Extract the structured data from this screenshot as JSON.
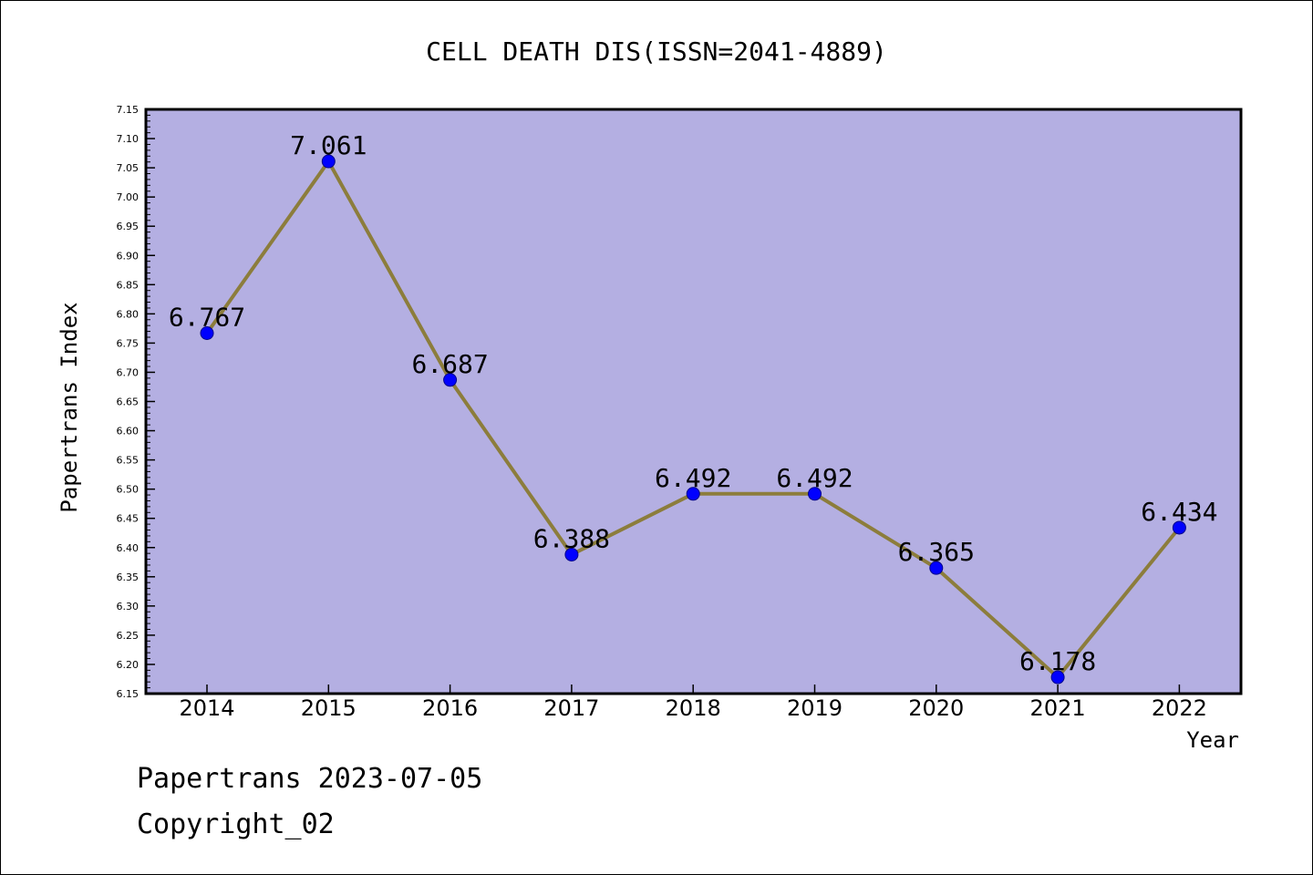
{
  "chart_data": {
    "type": "line",
    "title": "CELL DEATH DIS(ISSN=2041-4889)",
    "xlabel": "Year",
    "ylabel": "Papertrans Index",
    "categories": [
      "2014",
      "2015",
      "2016",
      "2017",
      "2018",
      "2019",
      "2020",
      "2021",
      "2022"
    ],
    "series": [
      {
        "values": [
          6.767,
          7.061,
          6.687,
          6.388,
          6.492,
          6.492,
          6.365,
          6.178,
          6.434
        ],
        "labels": [
          "6.767",
          "7.061",
          "6.687",
          "6.388",
          "6.492",
          "6.492",
          "6.365",
          "6.178",
          "6.434"
        ]
      }
    ],
    "ylim": [
      6.15,
      7.15
    ],
    "yticks": [
      "6.15",
      "6.20",
      "6.25",
      "6.30",
      "6.35",
      "6.40",
      "6.45",
      "6.50",
      "6.55",
      "6.60",
      "6.65",
      "6.70",
      "6.75",
      "6.80",
      "6.85",
      "6.90",
      "6.95",
      "7.00",
      "7.05",
      "7.10",
      "7.15"
    ],
    "grid": false,
    "colors": {
      "plot_background": "#b4afe2",
      "line": "#8c7d3c",
      "marker": "#0000ff"
    }
  },
  "footer": {
    "credit": "Papertrans 2023-07-05",
    "copyright": "Copyright_02"
  }
}
